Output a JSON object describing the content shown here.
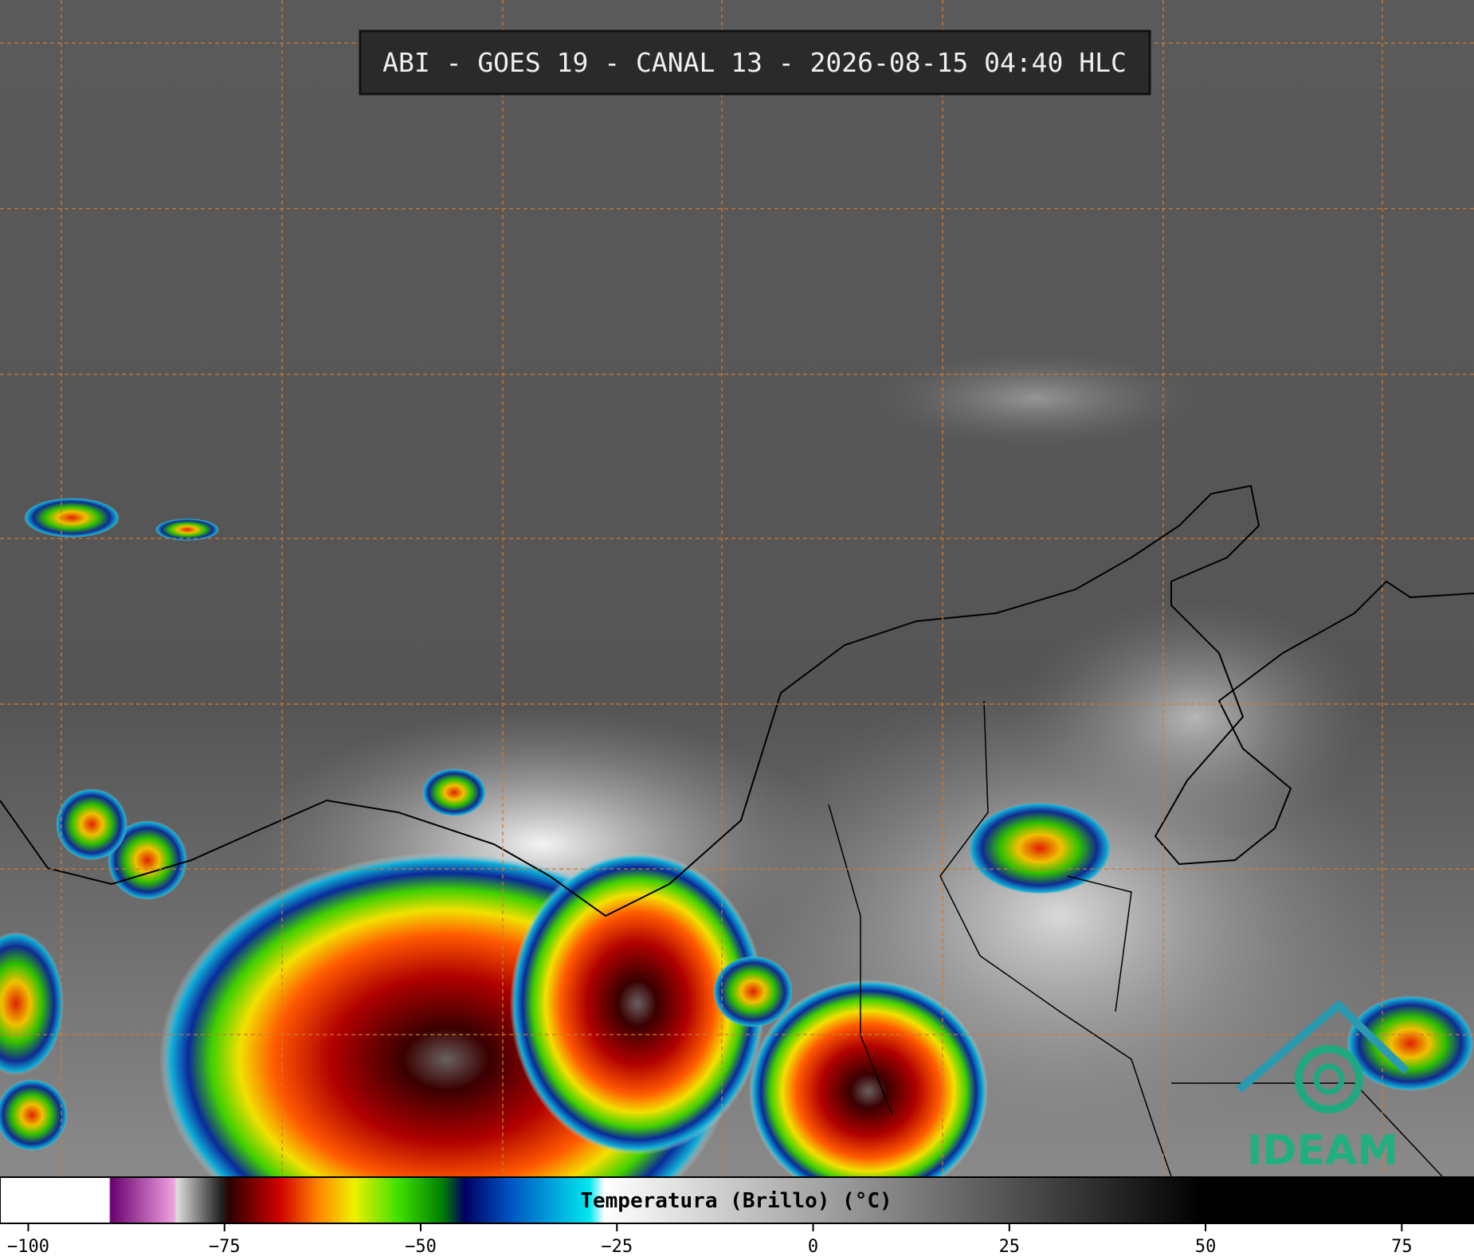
{
  "header": {
    "title": "ABI - GOES 19 - CANAL 13 - 2026-08-15 04:40 HLC"
  },
  "colorbar": {
    "title": "Temperatura (Brillo) (°C)",
    "range": [
      -103.6,
      84.2
    ],
    "ticks": [
      {
        "value": -100,
        "label": "−100"
      },
      {
        "value": -75,
        "label": "−75"
      },
      {
        "value": -50,
        "label": "−50"
      },
      {
        "value": -25,
        "label": "−25"
      },
      0,
      25,
      50,
      75
    ]
  },
  "logo": {
    "text": "IDEAM"
  }
}
